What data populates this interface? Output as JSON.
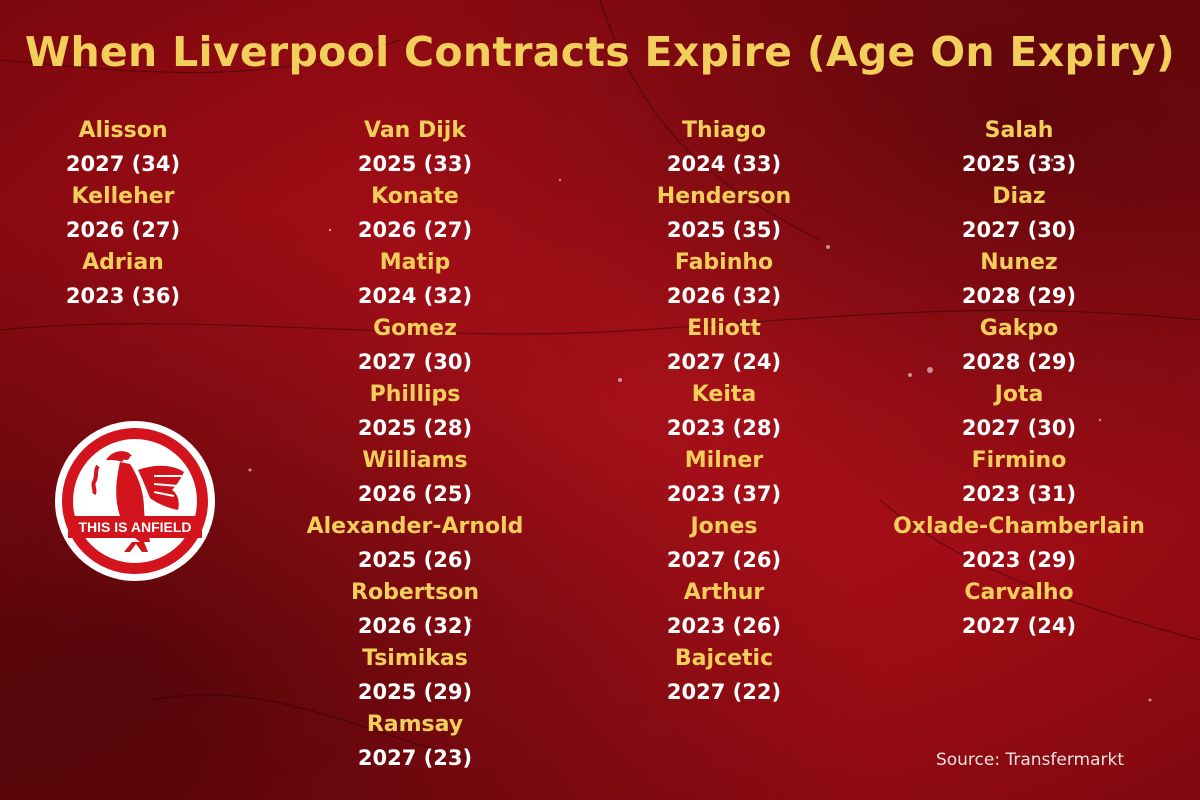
{
  "title": "When Liverpool Contracts Expire (Age On Expiry)",
  "source": "Source: Transfermarkt",
  "logo_text": "THIS IS ANFIELD",
  "columns": [
    [
      {
        "name": "Alisson",
        "expiry": "2027 (34)"
      },
      {
        "name": "Kelleher",
        "expiry": "2026 (27)"
      },
      {
        "name": "Adrian",
        "expiry": "2023 (36)"
      }
    ],
    [
      {
        "name": "Van Dijk",
        "expiry": "2025 (33)"
      },
      {
        "name": "Konate",
        "expiry": "2026 (27)"
      },
      {
        "name": "Matip",
        "expiry": "2024 (32)"
      },
      {
        "name": "Gomez",
        "expiry": "2027 (30)"
      },
      {
        "name": "Phillips",
        "expiry": "2025 (28)"
      },
      {
        "name": "Williams",
        "expiry": "2026 (25)"
      },
      {
        "name": "Alexander-Arnold",
        "expiry": "2025 (26)"
      },
      {
        "name": "Robertson",
        "expiry": "2026 (32)"
      },
      {
        "name": "Tsimikas",
        "expiry": "2025 (29)"
      },
      {
        "name": "Ramsay",
        "expiry": "2027 (23)"
      }
    ],
    [
      {
        "name": "Thiago",
        "expiry": "2024 (33)"
      },
      {
        "name": "Henderson",
        "expiry": "2025 (35)"
      },
      {
        "name": "Fabinho",
        "expiry": "2026 (32)"
      },
      {
        "name": "Elliott",
        "expiry": "2027 (24)"
      },
      {
        "name": "Keita",
        "expiry": "2023 (28)"
      },
      {
        "name": "Milner",
        "expiry": "2023 (37)"
      },
      {
        "name": "Jones",
        "expiry": "2027 (26)"
      },
      {
        "name": "Arthur",
        "expiry": "2023 (26)"
      },
      {
        "name": "Bajcetic",
        "expiry": "2027 (22)"
      }
    ],
    [
      {
        "name": "Salah",
        "expiry": "2025 (33)"
      },
      {
        "name": "Diaz",
        "expiry": "2027 (30)"
      },
      {
        "name": "Nunez",
        "expiry": "2028 (29)"
      },
      {
        "name": "Gakpo",
        "expiry": "2028 (29)"
      },
      {
        "name": "Jota",
        "expiry": "2027 (30)"
      },
      {
        "name": "Firmino",
        "expiry": "2023 (31)"
      },
      {
        "name": "Oxlade-Chamberlain",
        "expiry": "2023 (29)"
      },
      {
        "name": "Carvalho",
        "expiry": "2027 (24)"
      }
    ]
  ],
  "colors": {
    "background": "#9a0c14",
    "name_text": "#f2cf5b",
    "expiry_text": "#ffffff",
    "logo_red": "#d3141c"
  }
}
